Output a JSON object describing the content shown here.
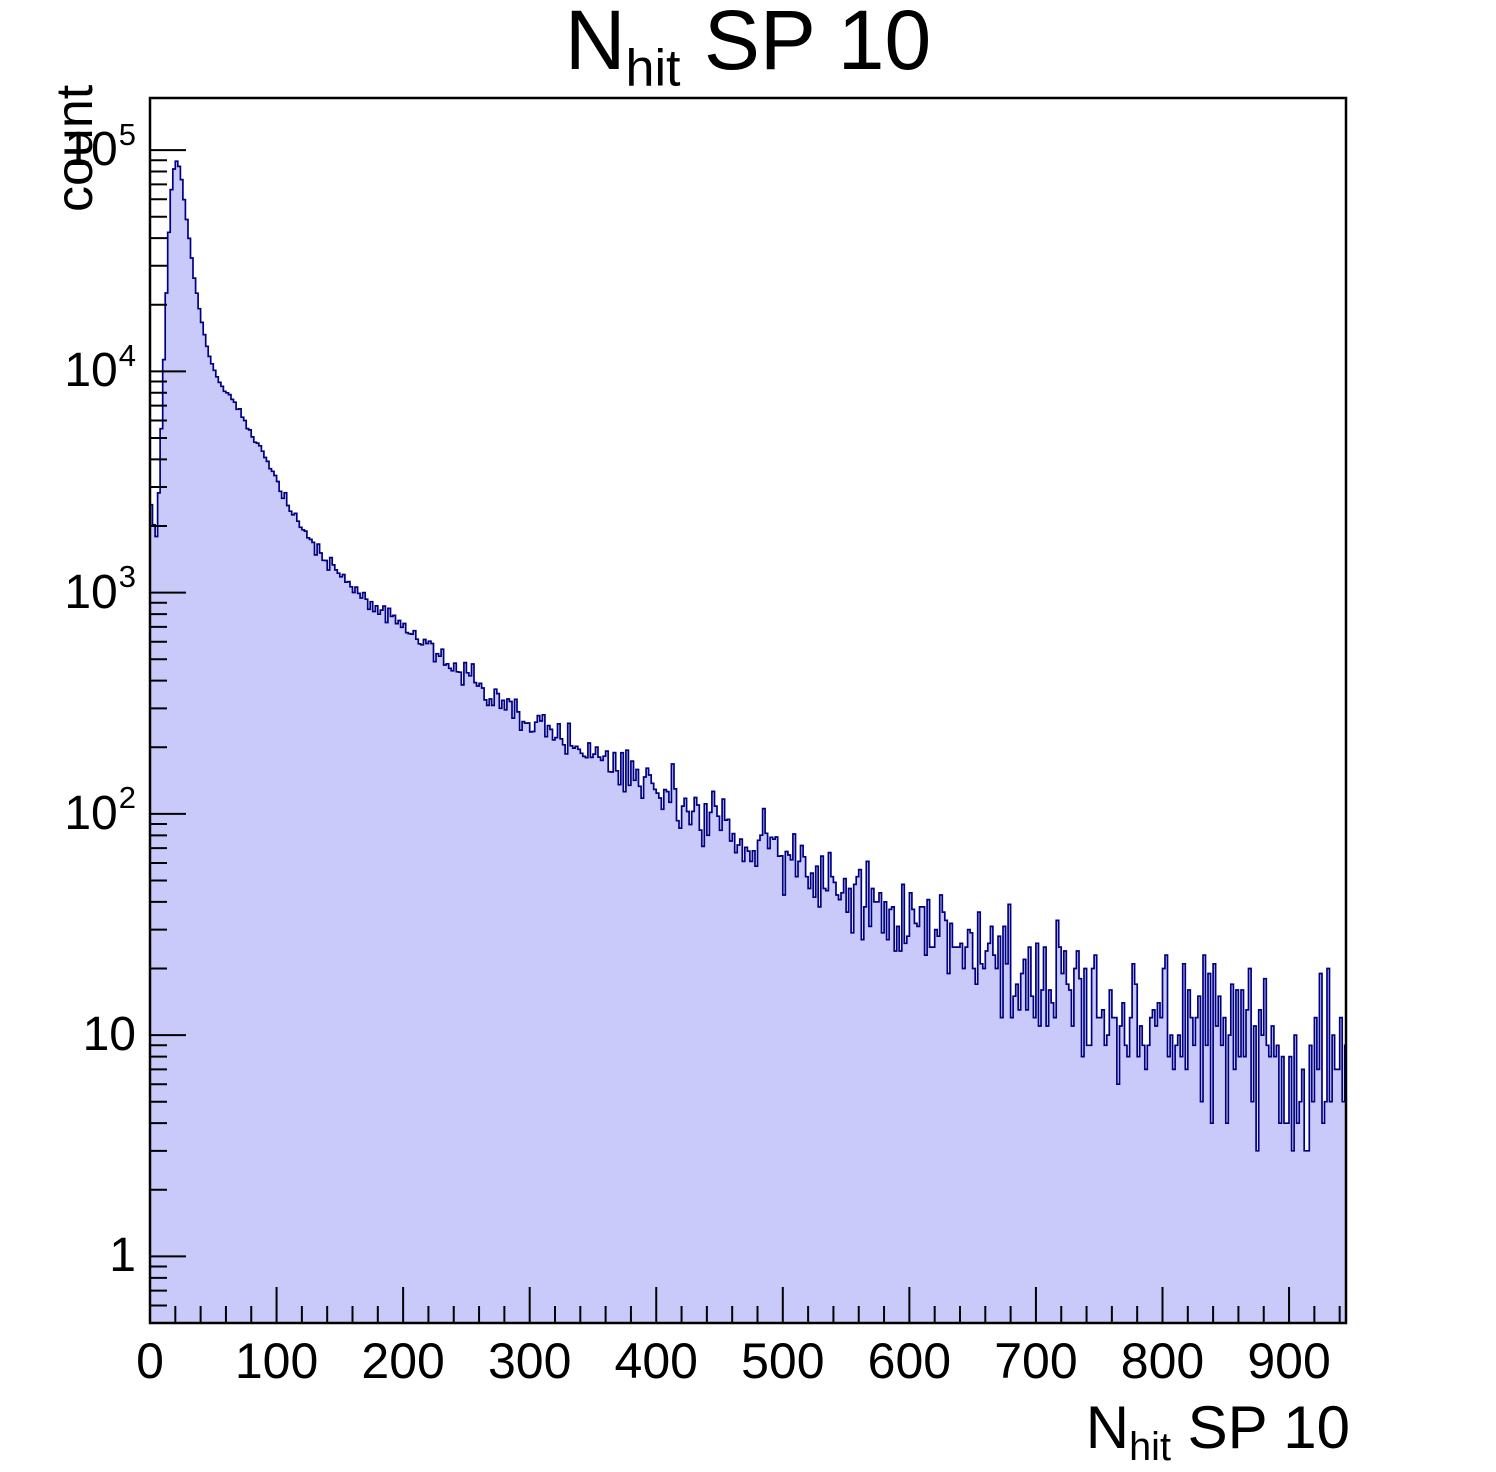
{
  "title": {
    "prefix": "N",
    "subscript": "hit",
    "suffix": " SP 10"
  },
  "y_axis": {
    "title": "count",
    "scale": "log",
    "min": 0.5,
    "max": 172000,
    "decade_labels": [
      {
        "value": 1,
        "base": "1",
        "exp": ""
      },
      {
        "value": 10,
        "base": "10",
        "exp": ""
      },
      {
        "value": 100,
        "base": "10",
        "exp": "2"
      },
      {
        "value": 1000,
        "base": "10",
        "exp": "3"
      },
      {
        "value": 10000,
        "base": "10",
        "exp": "4"
      },
      {
        "value": 100000,
        "base": "10",
        "exp": "5"
      }
    ]
  },
  "x_axis": {
    "title": {
      "prefix": "N",
      "subscript": "hit",
      "suffix": " SP 10"
    },
    "min": 0,
    "max": 945,
    "major_tick_step": 100,
    "minor_tick_step": 20,
    "major_labels": [
      {
        "value": 0,
        "text": "0"
      },
      {
        "value": 100,
        "text": "100"
      },
      {
        "value": 200,
        "text": "200"
      },
      {
        "value": 300,
        "text": "300"
      },
      {
        "value": 400,
        "text": "400"
      },
      {
        "value": 500,
        "text": "500"
      },
      {
        "value": 600,
        "text": "600"
      },
      {
        "value": 700,
        "text": "700"
      },
      {
        "value": 800,
        "text": "800"
      },
      {
        "value": 900,
        "text": "900"
      }
    ]
  },
  "chart_data": {
    "type": "bar",
    "style": "filled-step-histogram",
    "title": "N_hit SP 10",
    "xlabel": "N_hit SP 10",
    "ylabel": "count",
    "xlim": [
      0,
      945
    ],
    "ylim": [
      0.5,
      172000
    ],
    "yscale": "log",
    "grid": false,
    "legend": false,
    "bin_width": 2,
    "n_bins": 473,
    "peak": {
      "x": 21,
      "count": 89000
    },
    "first_bin_count": 2800,
    "dip_after_first_bin": 1600,
    "noise_model": "poisson",
    "envelope_points": [
      [
        0,
        2800
      ],
      [
        2,
        2200
      ],
      [
        4,
        1600
      ],
      [
        6,
        2100
      ],
      [
        8,
        4000
      ],
      [
        10,
        8000
      ],
      [
        12,
        16000
      ],
      [
        14,
        32000
      ],
      [
        16,
        56000
      ],
      [
        18,
        78000
      ],
      [
        20,
        88000
      ],
      [
        22,
        89000
      ],
      [
        24,
        80000
      ],
      [
        26,
        67000
      ],
      [
        28,
        54000
      ],
      [
        31,
        40000
      ],
      [
        34,
        29000
      ],
      [
        38,
        20500
      ],
      [
        42,
        15500
      ],
      [
        46,
        12300
      ],
      [
        50,
        10400
      ],
      [
        55,
        9000
      ],
      [
        60,
        8100
      ],
      [
        66,
        7300
      ],
      [
        72,
        6400
      ],
      [
        80,
        5200
      ],
      [
        88,
        4400
      ],
      [
        96,
        3600
      ],
      [
        104,
        2900
      ],
      [
        112,
        2400
      ],
      [
        120,
        2000
      ],
      [
        130,
        1650
      ],
      [
        140,
        1400
      ],
      [
        150,
        1210
      ],
      [
        160,
        1060
      ],
      [
        170,
        945
      ],
      [
        180,
        855
      ],
      [
        190,
        770
      ],
      [
        200,
        700
      ],
      [
        212,
        620
      ],
      [
        224,
        548
      ],
      [
        236,
        482
      ],
      [
        248,
        425
      ],
      [
        260,
        380
      ],
      [
        275,
        332
      ],
      [
        290,
        292
      ],
      [
        305,
        258
      ],
      [
        320,
        230
      ],
      [
        340,
        196
      ],
      [
        360,
        168
      ],
      [
        380,
        145
      ],
      [
        400,
        125
      ],
      [
        430,
        100
      ],
      [
        460,
        82
      ],
      [
        490,
        67
      ],
      [
        520,
        54
      ],
      [
        550,
        44.5
      ],
      [
        580,
        37
      ],
      [
        610,
        31
      ],
      [
        640,
        26
      ],
      [
        670,
        22
      ],
      [
        700,
        18.8
      ],
      [
        730,
        16
      ],
      [
        760,
        13.8
      ],
      [
        790,
        12
      ],
      [
        820,
        10.5
      ],
      [
        850,
        9.2
      ],
      [
        880,
        8
      ],
      [
        910,
        7
      ],
      [
        946,
        6
      ]
    ],
    "colors": {
      "fill": "#cacafa",
      "line": "#000082",
      "frame": "#000000",
      "text": "#000000"
    }
  }
}
